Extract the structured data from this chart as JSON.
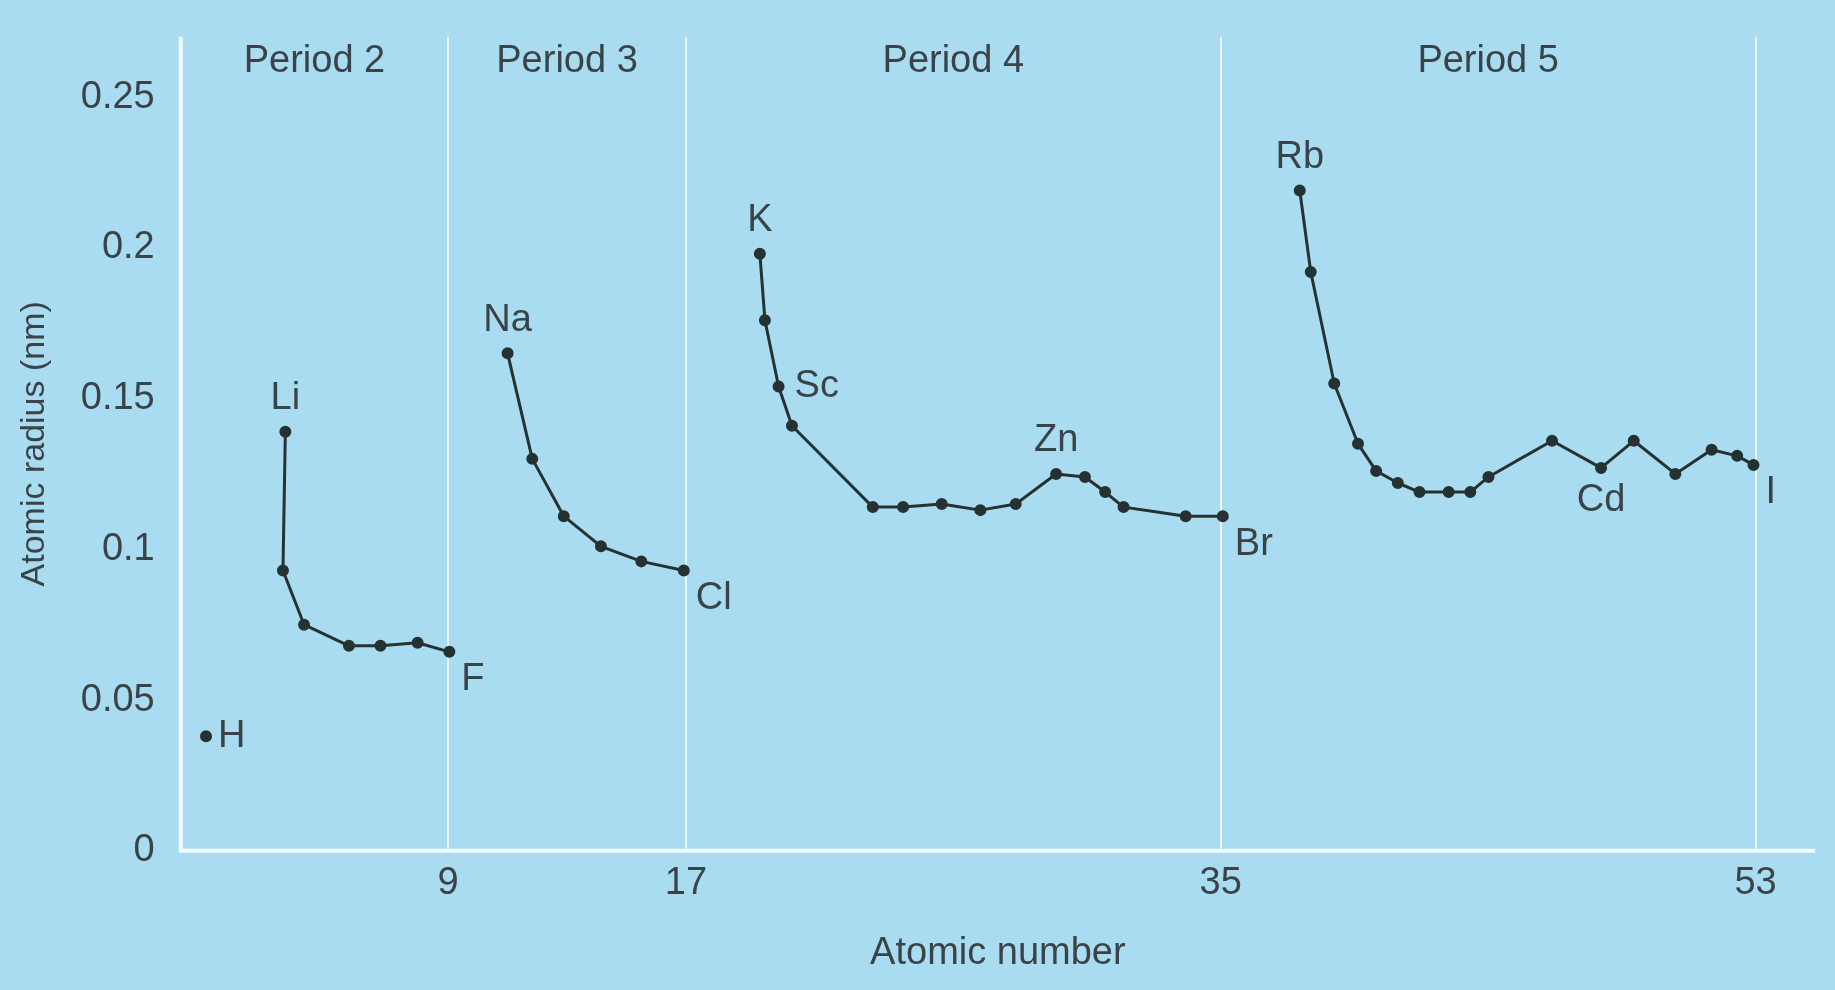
{
  "chart_data": {
    "type": "line",
    "xlabel": "Atomic number",
    "ylabel": "Atomic radius (nm)",
    "xlim": [
      0,
      55
    ],
    "xticks": [
      9,
      17,
      35,
      53
    ],
    "ylim": [
      0,
      0.27
    ],
    "yticks": [
      0,
      0.05,
      0.1,
      0.15,
      0.2,
      0.25
    ],
    "grid": "x",
    "marker": "circle",
    "line_style": "solid",
    "series": [
      {
        "color": "#263232",
        "x": [
          0.85
        ],
        "values": [
          0.038
        ]
      },
      {
        "color": "#263232",
        "x": [
          3.52,
          3.44,
          4.15,
          5.66,
          6.72,
          7.97,
          9.04
        ],
        "values": [
          0.139,
          0.093,
          0.075,
          0.068,
          0.068,
          0.069,
          0.066
        ]
      },
      {
        "color": "#263232",
        "x": [
          11.0,
          11.83,
          12.89,
          14.14,
          15.5,
          16.93
        ],
        "values": [
          0.165,
          0.13,
          0.111,
          0.101,
          0.096,
          0.093
        ]
      },
      {
        "color": "#263232",
        "x": [
          19.49,
          19.66,
          20.12,
          20.57,
          23.29,
          24.31,
          25.61,
          26.91,
          28.1,
          29.46,
          30.43,
          31.11,
          31.73,
          33.82,
          35.07
        ],
        "values": [
          0.198,
          0.176,
          0.154,
          0.141,
          0.114,
          0.114,
          0.115,
          0.113,
          0.115,
          0.125,
          0.124,
          0.119,
          0.114,
          0.111,
          0.111
        ]
      },
      {
        "color": "#263232",
        "x": [
          37.66,
          38.03,
          38.82,
          39.62,
          40.23,
          40.96,
          41.69,
          42.67,
          43.4,
          44.01,
          46.15,
          47.8,
          48.9,
          50.3,
          51.52,
          52.38,
          52.93
        ],
        "values": [
          0.219,
          0.192,
          0.155,
          0.135,
          0.126,
          0.122,
          0.119,
          0.119,
          0.119,
          0.124,
          0.136,
          0.127,
          0.136,
          0.125,
          0.133,
          0.131,
          0.128
        ]
      }
    ],
    "annotations": [
      "Period 2",
      "Period 3",
      "Period 4",
      "Period 5",
      {
        "text": "H",
        "x": 0.85,
        "y": 0.038
      },
      {
        "text": "Li",
        "x": 3.52,
        "y": 0.139
      },
      {
        "text": "F",
        "x": 9.04,
        "y": 0.066
      },
      {
        "text": "Na",
        "x": 11.0,
        "y": 0.165
      },
      {
        "text": "Cl",
        "x": 16.93,
        "y": 0.093
      },
      {
        "text": "K",
        "x": 19.49,
        "y": 0.198
      },
      {
        "text": "Sc",
        "x": 20.12,
        "y": 0.154
      },
      {
        "text": "Zn",
        "x": 29.46,
        "y": 0.125
      },
      {
        "text": "Br",
        "x": 35.07,
        "y": 0.111
      },
      {
        "text": "Rb",
        "x": 37.66,
        "y": 0.219
      },
      {
        "text": "Cd",
        "x": 47.8,
        "y": 0.127
      },
      {
        "text": "I",
        "x": 52.93,
        "y": 0.128
      }
    ]
  }
}
